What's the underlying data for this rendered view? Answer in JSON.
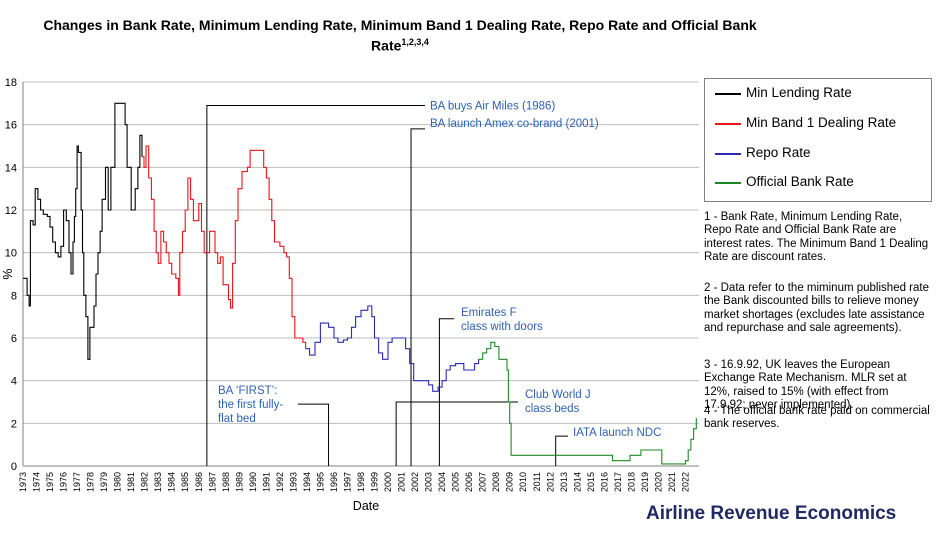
{
  "title_line1": "Changes in Bank Rate, Minimum Lending Rate, Minimum Band 1 Dealing Rate, Repo Rate and Official Bank",
  "title_line2": "Rate",
  "title_sup": "1,2,3,4",
  "brand": "Airline Revenue Economics",
  "notes": [
    "1 - Bank Rate, Minimum Lending Rate, Repo Rate and Official Bank Rate are interest rates.  The Minimum Band 1 Dealing Rate are discount rates.",
    "2 - Data refer to the miminum published rate the Bank discounted bills to relieve money market shortages (excludes late assistance and repurchase and sale agreements).",
    "3 - 16.9.92, UK leaves the European Exchange Rate Mechanism.  MLR set at 12%, raised to 15% (with effect from 17.9.92; never implemented).",
    "4 - The official bank rate paid on commercial bank reserves."
  ],
  "chart_data": {
    "type": "line",
    "xlabel": "Date",
    "ylabel": "%",
    "ylim": [
      0,
      18
    ],
    "xlim": [
      1973,
      2023
    ],
    "yticks": [
      0,
      2,
      4,
      6,
      8,
      10,
      12,
      14,
      16,
      18
    ],
    "xticks": [
      1973,
      1974,
      1975,
      1976,
      1977,
      1978,
      1979,
      1980,
      1981,
      1982,
      1983,
      1984,
      1985,
      1986,
      1987,
      1988,
      1989,
      1990,
      1991,
      1992,
      1993,
      1994,
      1995,
      1996,
      1997,
      1998,
      1999,
      2000,
      2001,
      2002,
      2003,
      2004,
      2005,
      2006,
      2007,
      2008,
      2009,
      2010,
      2011,
      2012,
      2013,
      2014,
      2015,
      2016,
      2017,
      2018,
      2019,
      2020,
      2021,
      2022
    ],
    "grid": "horizontal",
    "legend_position": "right",
    "series": [
      {
        "name": "Min Lending Rate",
        "color": "#000000",
        "points": [
          [
            1973.0,
            8.8
          ],
          [
            1973.3,
            8.0
          ],
          [
            1973.45,
            7.5
          ],
          [
            1973.55,
            11.5
          ],
          [
            1973.75,
            11.3
          ],
          [
            1973.9,
            13.0
          ],
          [
            1974.1,
            12.5
          ],
          [
            1974.3,
            12.0
          ],
          [
            1974.5,
            11.8
          ],
          [
            1974.8,
            11.7
          ],
          [
            1975.0,
            11.2
          ],
          [
            1975.2,
            10.5
          ],
          [
            1975.4,
            10.0
          ],
          [
            1975.6,
            9.8
          ],
          [
            1975.8,
            10.3
          ],
          [
            1976.0,
            12.0
          ],
          [
            1976.2,
            11.5
          ],
          [
            1976.4,
            10.0
          ],
          [
            1976.55,
            9.0
          ],
          [
            1976.7,
            10.5
          ],
          [
            1976.8,
            11.7
          ],
          [
            1976.9,
            13.0
          ],
          [
            1977.0,
            15.0
          ],
          [
            1977.1,
            14.7
          ],
          [
            1977.3,
            12.0
          ],
          [
            1977.4,
            10.0
          ],
          [
            1977.5,
            8.0
          ],
          [
            1977.65,
            7.0
          ],
          [
            1977.8,
            5.0
          ],
          [
            1977.95,
            6.5
          ],
          [
            1978.1,
            6.5
          ],
          [
            1978.25,
            7.5
          ],
          [
            1978.4,
            9.0
          ],
          [
            1978.55,
            10.0
          ],
          [
            1978.7,
            11.0
          ],
          [
            1978.85,
            12.5
          ],
          [
            1979.1,
            14.0
          ],
          [
            1979.3,
            12.0
          ],
          [
            1979.5,
            14.0
          ],
          [
            1979.8,
            17.0
          ],
          [
            1980.4,
            17.0
          ],
          [
            1980.55,
            16.0
          ],
          [
            1980.7,
            14.0
          ],
          [
            1981.0,
            12.0
          ],
          [
            1981.2,
            12.0
          ],
          [
            1981.3,
            13.0
          ],
          [
            1981.5,
            14.0
          ],
          [
            1981.65,
            15.5
          ],
          [
            1981.8,
            14.5
          ]
        ]
      },
      {
        "name": "Min Band 1 Dealing Rate",
        "color": "#e8141a",
        "points": [
          [
            1981.8,
            14.5
          ],
          [
            1981.95,
            14.0
          ],
          [
            1982.1,
            15.0
          ],
          [
            1982.3,
            13.5
          ],
          [
            1982.5,
            12.5
          ],
          [
            1982.7,
            11.0
          ],
          [
            1982.85,
            10.0
          ],
          [
            1983.0,
            9.5
          ],
          [
            1983.2,
            11.0
          ],
          [
            1983.4,
            10.5
          ],
          [
            1983.6,
            10.0
          ],
          [
            1983.8,
            9.5
          ],
          [
            1984.0,
            9.0
          ],
          [
            1984.3,
            8.8
          ],
          [
            1984.5,
            8.0
          ],
          [
            1984.6,
            10.0
          ],
          [
            1984.8,
            11.0
          ],
          [
            1985.0,
            12.0
          ],
          [
            1985.2,
            13.5
          ],
          [
            1985.4,
            12.5
          ],
          [
            1985.6,
            11.5
          ],
          [
            1985.8,
            11.5
          ],
          [
            1986.0,
            12.3
          ],
          [
            1986.2,
            11.0
          ],
          [
            1986.4,
            10.0
          ],
          [
            1986.6,
            10.0
          ],
          [
            1986.8,
            11.0
          ],
          [
            1987.0,
            11.0
          ],
          [
            1987.2,
            10.0
          ],
          [
            1987.4,
            9.5
          ],
          [
            1987.6,
            9.8
          ],
          [
            1987.8,
            8.5
          ],
          [
            1988.0,
            8.5
          ],
          [
            1988.2,
            7.8
          ],
          [
            1988.35,
            7.4
          ],
          [
            1988.5,
            9.5
          ],
          [
            1988.7,
            11.5
          ],
          [
            1988.9,
            13.0
          ],
          [
            1989.2,
            13.8
          ],
          [
            1989.6,
            14.0
          ],
          [
            1989.8,
            14.8
          ],
          [
            1990.6,
            14.8
          ],
          [
            1990.8,
            14.0
          ],
          [
            1991.0,
            13.5
          ],
          [
            1991.2,
            12.5
          ],
          [
            1991.4,
            11.5
          ],
          [
            1991.6,
            10.5
          ],
          [
            1991.8,
            10.5
          ],
          [
            1992.0,
            10.3
          ],
          [
            1992.3,
            10.0
          ],
          [
            1992.5,
            9.8
          ],
          [
            1992.7,
            8.8
          ],
          [
            1992.9,
            7.0
          ],
          [
            1993.1,
            6.0
          ],
          [
            1993.4,
            6.0
          ],
          [
            1993.7,
            5.8
          ],
          [
            1993.9,
            5.5
          ]
        ]
      },
      {
        "name": "Repo Rate",
        "color": "#2b2bb5",
        "points": [
          [
            1993.9,
            5.5
          ],
          [
            1994.2,
            5.2
          ],
          [
            1994.6,
            5.8
          ],
          [
            1995.0,
            6.7
          ],
          [
            1995.6,
            6.5
          ],
          [
            1996.0,
            6.0
          ],
          [
            1996.3,
            5.8
          ],
          [
            1996.7,
            5.9
          ],
          [
            1997.0,
            6.0
          ],
          [
            1997.3,
            6.5
          ],
          [
            1997.6,
            7.0
          ],
          [
            1998.0,
            7.3
          ],
          [
            1998.5,
            7.5
          ],
          [
            1998.8,
            7.0
          ],
          [
            1999.0,
            6.0
          ],
          [
            1999.3,
            5.3
          ],
          [
            1999.6,
            5.0
          ],
          [
            2000.0,
            5.8
          ],
          [
            2000.3,
            6.0
          ],
          [
            2001.0,
            6.0
          ],
          [
            2001.3,
            5.5
          ],
          [
            2001.6,
            4.8
          ],
          [
            2001.9,
            4.0
          ],
          [
            2002.5,
            4.0
          ],
          [
            2003.0,
            3.8
          ],
          [
            2003.3,
            3.5
          ],
          [
            2003.7,
            3.7
          ],
          [
            2004.0,
            4.0
          ],
          [
            2004.3,
            4.5
          ],
          [
            2004.6,
            4.7
          ],
          [
            2005.0,
            4.8
          ],
          [
            2005.6,
            4.5
          ],
          [
            2006.0,
            4.5
          ],
          [
            2006.4,
            4.8
          ],
          [
            2006.7,
            5.0
          ]
        ]
      },
      {
        "name": "Official Bank Rate",
        "color": "#1f8a25",
        "points": [
          [
            2006.7,
            5.0
          ],
          [
            2007.0,
            5.3
          ],
          [
            2007.3,
            5.5
          ],
          [
            2007.6,
            5.8
          ],
          [
            2007.9,
            5.6
          ],
          [
            2008.2,
            5.0
          ],
          [
            2008.5,
            5.0
          ],
          [
            2008.8,
            4.5
          ],
          [
            2008.9,
            3.0
          ],
          [
            2009.0,
            2.0
          ],
          [
            2009.1,
            0.5
          ],
          [
            2016.5,
            0.5
          ],
          [
            2016.6,
            0.25
          ],
          [
            2017.8,
            0.25
          ],
          [
            2017.9,
            0.5
          ],
          [
            2018.6,
            0.5
          ],
          [
            2018.7,
            0.75
          ],
          [
            2020.2,
            0.75
          ],
          [
            2020.25,
            0.1
          ],
          [
            2021.9,
            0.1
          ],
          [
            2022.0,
            0.25
          ],
          [
            2022.2,
            0.75
          ],
          [
            2022.4,
            1.25
          ],
          [
            2022.6,
            1.75
          ],
          [
            2022.8,
            2.25
          ]
        ]
      }
    ],
    "annotations": [
      {
        "text": "BA buys Air Miles (1986)",
        "year": 1986.6
      },
      {
        "text": "BA launch Amex co-brand (2001)",
        "year": 2001.7
      },
      {
        "text": "Emirates F class with doors",
        "year": 2003.8
      },
      {
        "text": "BA ‘FIRST’: the first fully-flat bed",
        "year": 1995.6
      },
      {
        "text": "Club World J class beds",
        "year": 2000.6
      },
      {
        "text": "IATA launch NDC",
        "year": 2012.4
      }
    ]
  }
}
